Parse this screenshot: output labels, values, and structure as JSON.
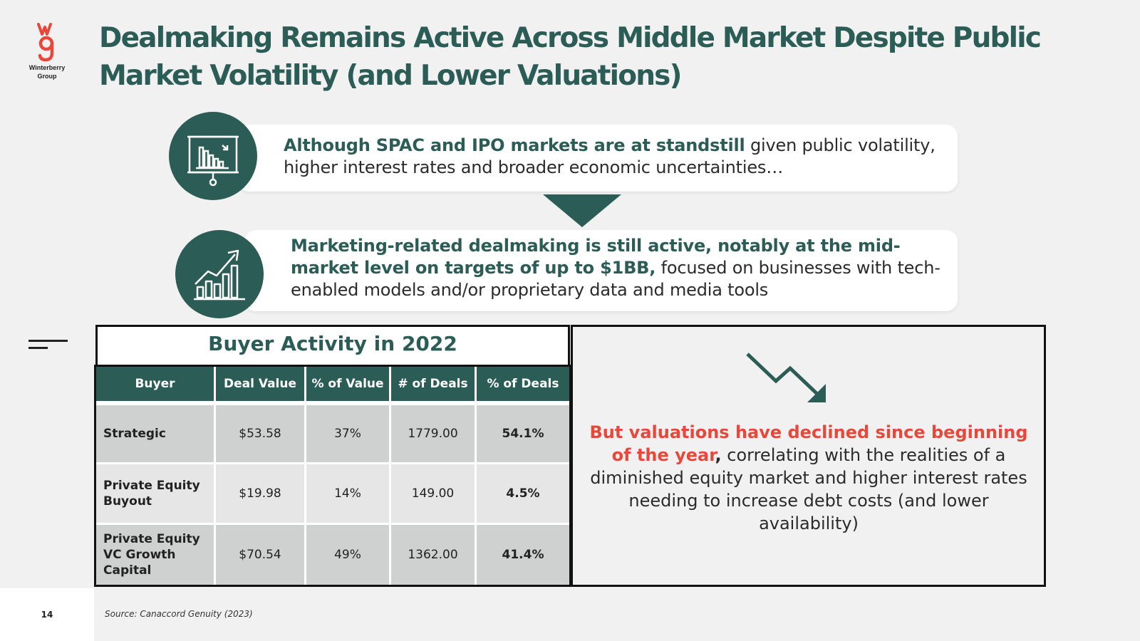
{
  "logo": {
    "text_line1": "Winterberry",
    "text_line2": "Group"
  },
  "title": "Dealmaking Remains Active Across Middle Market Despite Public Market Volatility (and Lower Valuations)",
  "callout1": {
    "bold": "Although SPAC and IPO markets are at standstill",
    "rest": " given public volatility, higher interest rates and broader economic uncertainties…",
    "icon": "presentation-chart-down-icon"
  },
  "callout2": {
    "bold": "Marketing-related dealmaking is still active, notably at the mid-market level on targets of up to $1BB,",
    "rest": " focused on businesses with tech-enabled models and/or proprietary data and media tools",
    "icon": "growth-chart-icon"
  },
  "table": {
    "title": "Buyer Activity in 2022",
    "headers": [
      "Buyer",
      "Deal Value",
      "% of Value",
      "# of Deals",
      "% of Deals"
    ],
    "rows": [
      [
        "Strategic",
        "$53.58",
        "37%",
        "1779.00",
        "54.1%"
      ],
      [
        "Private Equity Buyout",
        "$19.98",
        "14%",
        "149.00",
        "4.5%"
      ],
      [
        "Private Equity VC Growth Capital",
        "$70.54",
        "49%",
        "1362.00",
        "41.4%"
      ]
    ]
  },
  "right_panel": {
    "icon": "trend-down-arrow-icon",
    "red": "But valuations have declined since beginning of the year",
    "comma": ",",
    "rest": " correlating with the realities of a diminished equity market and higher interest rates needing to increase debt costs (and lower availability)"
  },
  "footer": {
    "page_number": "14",
    "source": "Source: Canaccord Genuity (2023)"
  },
  "colors": {
    "brand_green": "#2b5d56",
    "accent_red": "#e8473a"
  }
}
